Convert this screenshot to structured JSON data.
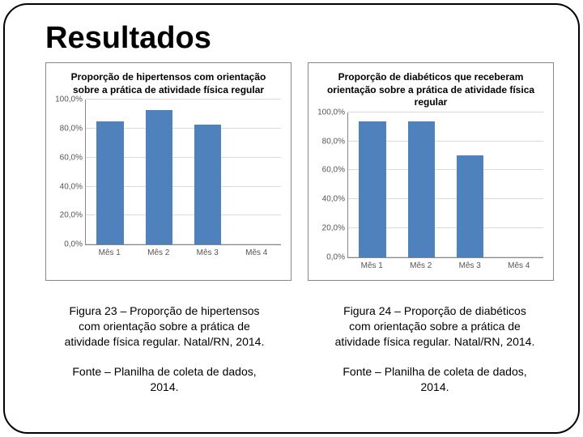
{
  "title": "Resultados",
  "bar_color": "#4f81bd",
  "grid_color": "#d9d9d9",
  "axis_color": "#888888",
  "chart_left": {
    "title": "Proporção de hipertensos com orientação sobre a prática de  atividade física regular",
    "ylim": [
      0,
      100
    ],
    "ytick_step": 20,
    "yticks": [
      "0,0%",
      "20,0%",
      "40,0%",
      "60,0%",
      "80,0%",
      "100,0%"
    ],
    "categories": [
      "Mês 1",
      "Mês 2",
      "Mês 3",
      "Mês 4"
    ],
    "values": [
      85,
      93,
      83,
      0
    ]
  },
  "chart_right": {
    "title": "Proporção de diabéticos que receberam orientação sobre a prática de atividade física regular",
    "ylim": [
      0,
      100
    ],
    "ytick_step": 20,
    "yticks": [
      "0,0%",
      "20,0%",
      "40,0%",
      "60,0%",
      "80,0%",
      "100,0%"
    ],
    "categories": [
      "Mês 1",
      "Mês 2",
      "Mês 3",
      "Mês 4"
    ],
    "values": [
      94,
      94,
      70,
      0
    ]
  },
  "caption_left": "Figura 23 – Proporção de hipertensos com orientação sobre a prática de atividade física regular. Natal/RN, 2014.",
  "caption_right": "Figura 24 – Proporção de diabéticos com orientação sobre a prática de atividade física regular. Natal/RN, 2014.",
  "source_left": "Fonte – Planilha de coleta de dados, 2014.",
  "source_right": "Fonte – Planilha de coleta de dados, 2014."
}
